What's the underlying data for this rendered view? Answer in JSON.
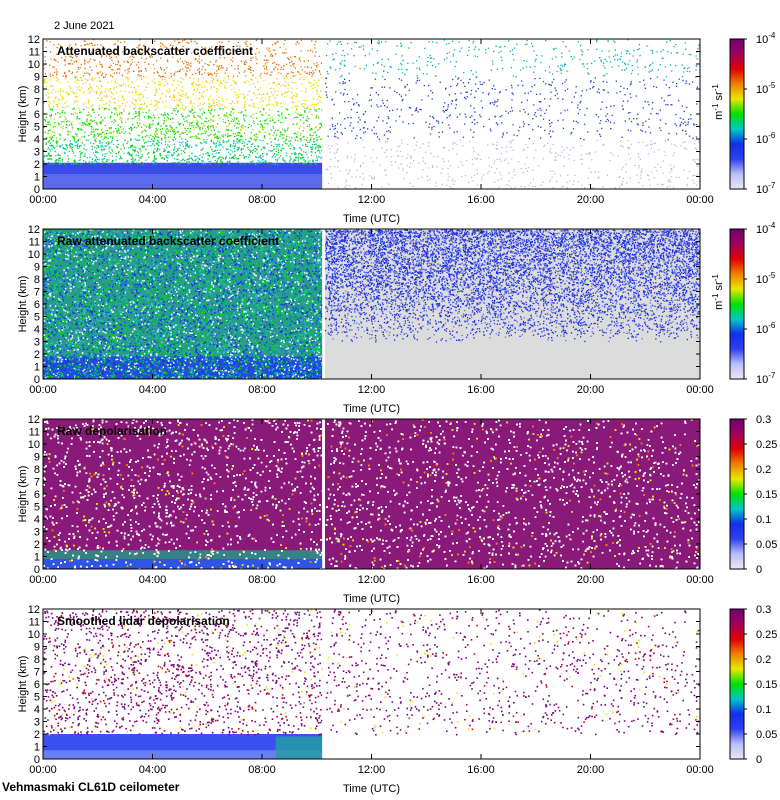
{
  "header": {
    "date": "2 June 2021"
  },
  "footer": {
    "site": "Vehmasmaki CL61D ceilometer"
  },
  "colors": {
    "cb_stops": [
      "#e8e8f4",
      "#b8c0f8",
      "#3040f0",
      "#1030e8",
      "#00c8c8",
      "#00e000",
      "#e8e800",
      "#f08000",
      "#e00000",
      "#a00060",
      "#700070"
    ],
    "gap": "#ffffff",
    "raw_bg": "#dcdcdc"
  },
  "chart_data": [
    {
      "type": "heatmap",
      "title": "Attenuated backscatter coefficient",
      "xlabel": "Time (UTC)",
      "ylabel": "Height (km)",
      "x_ticks": [
        "00:00",
        "04:00",
        "08:00",
        "12:00",
        "16:00",
        "20:00",
        "00:00"
      ],
      "y_ticks": [
        "0",
        "1",
        "2",
        "3",
        "4",
        "5",
        "6",
        "7",
        "8",
        "9",
        "10",
        "11",
        "12"
      ],
      "xlim": [
        0,
        24
      ],
      "ylim": [
        0,
        12
      ],
      "data_gap_hours": [
        10.2,
        10.3
      ],
      "colorbar": {
        "scale": "log",
        "range": [
          1e-07,
          0.0001
        ],
        "ticks": [
          "10",
          "10",
          "10",
          "10"
        ],
        "tick_exponents": [
          "-7",
          "-6",
          "-5",
          "-4"
        ],
        "unit": "m",
        "unit_exp": "-1",
        "unit2": "sr",
        "unit2_exp": "-1"
      }
    },
    {
      "type": "heatmap",
      "title": "Raw attenuated backscatter coefficient",
      "xlabel": "Time (UTC)",
      "ylabel": "Height (km)",
      "x_ticks": [
        "00:00",
        "04:00",
        "08:00",
        "12:00",
        "16:00",
        "20:00",
        "00:00"
      ],
      "y_ticks": [
        "0",
        "1",
        "2",
        "3",
        "4",
        "5",
        "6",
        "7",
        "8",
        "9",
        "10",
        "11",
        "12"
      ],
      "xlim": [
        0,
        24
      ],
      "ylim": [
        0,
        12
      ],
      "data_gap_hours": [
        10.2,
        10.3
      ],
      "colorbar": {
        "scale": "log",
        "range": [
          1e-07,
          0.0001
        ],
        "ticks": [
          "10",
          "10",
          "10",
          "10"
        ],
        "tick_exponents": [
          "-7",
          "-6",
          "-5",
          "-4"
        ],
        "unit": "m",
        "unit_exp": "-1",
        "unit2": "sr",
        "unit2_exp": "-1"
      }
    },
    {
      "type": "heatmap",
      "title": "Raw depolarisation",
      "xlabel": "Time (UTC)",
      "ylabel": "Height (km)",
      "x_ticks": [
        "00:00",
        "04:00",
        "08:00",
        "12:00",
        "16:00",
        "20:00",
        "00:00"
      ],
      "y_ticks": [
        "0",
        "1",
        "2",
        "3",
        "4",
        "5",
        "6",
        "7",
        "8",
        "9",
        "10",
        "11",
        "12"
      ],
      "xlim": [
        0,
        24
      ],
      "ylim": [
        0,
        12
      ],
      "data_gap_hours": [
        10.2,
        10.3
      ],
      "colorbar": {
        "scale": "linear",
        "range": [
          0,
          0.3
        ],
        "ticks": [
          "0",
          "0.05",
          "0.1",
          "0.15",
          "0.2",
          "0.25",
          "0.3"
        ]
      }
    },
    {
      "type": "heatmap",
      "title": "Smoothed lidar depolarisation",
      "xlabel": "Time (UTC)",
      "ylabel": "Height (km)",
      "x_ticks": [
        "00:00",
        "04:00",
        "08:00",
        "12:00",
        "16:00",
        "20:00",
        "00:00"
      ],
      "y_ticks": [
        "0",
        "1",
        "2",
        "3",
        "4",
        "5",
        "6",
        "7",
        "8",
        "9",
        "10",
        "11",
        "12"
      ],
      "xlim": [
        0,
        24
      ],
      "ylim": [
        0,
        12
      ],
      "data_gap_hours": [
        10.2,
        10.3
      ],
      "colorbar": {
        "scale": "linear",
        "range": [
          0,
          0.3
        ],
        "ticks": [
          "0",
          "0.05",
          "0.1",
          "0.15",
          "0.2",
          "0.25",
          "0.3"
        ]
      }
    }
  ]
}
